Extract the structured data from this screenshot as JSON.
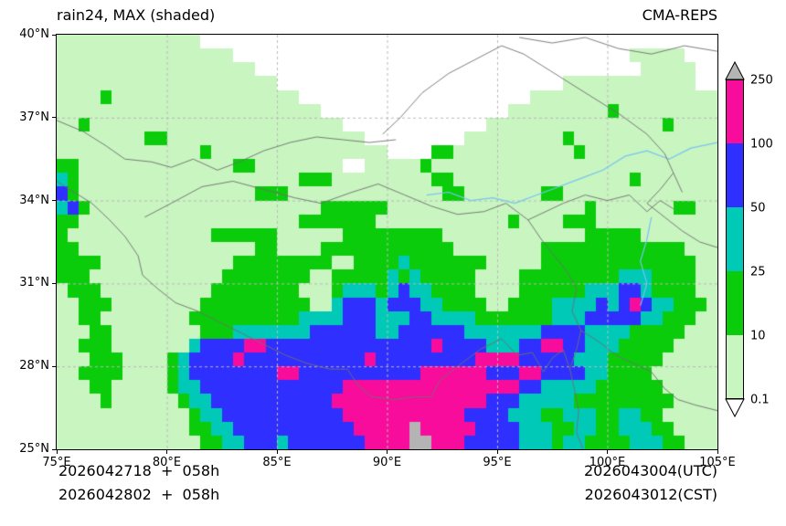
{
  "header": {
    "title": "rain24, MAX (shaded)",
    "model": "CMA-REPS"
  },
  "axes": {
    "x_tick_labels": [
      "75°E",
      "80°E",
      "85°E",
      "90°E",
      "95°E",
      "100°E",
      "105°E"
    ],
    "x_tick_values": [
      75,
      80,
      85,
      90,
      95,
      100,
      105
    ],
    "y_tick_labels": [
      "40°N",
      "37°N",
      "34°N",
      "31°N",
      "28°N",
      "25°N"
    ],
    "y_tick_values": [
      40,
      37,
      34,
      31,
      28,
      25
    ]
  },
  "colorbar": {
    "tick_labels": [
      "0.1",
      "10",
      "25",
      "50",
      "100",
      "250"
    ],
    "segment_colors": [
      "#c8f5c0",
      "#0acc0a",
      "#00c9b8",
      "#2f2fff",
      "#f80c9c"
    ],
    "over_color": "#b4b4b4",
    "under_color": "#ffffff"
  },
  "footer": {
    "init_line1": "2026042718  +  058h",
    "init_line2": "2026042802  +  058h",
    "valid_utc": "2026043004(UTC)",
    "valid_cst": "2026043012(CST)"
  },
  "chart_data": {
    "type": "heatmap",
    "title": "rain24, MAX (shaded)",
    "model": "CMA-REPS",
    "x_range": [
      75,
      105
    ],
    "y_range": [
      25,
      40
    ],
    "cell_deg": 0.5,
    "levels_mm": [
      0.1,
      10,
      25,
      50,
      100,
      250
    ],
    "palette": {
      "0": "#ffffff",
      "1": "#c8f5c0",
      "2": "#0acc0a",
      "3": "#00c9b8",
      "4": "#2f2fff",
      "5": "#f80c9c",
      "6": "#b4b4b4"
    },
    "grid_lons": [
      80,
      85,
      90,
      95,
      100
    ],
    "grid_lats": [
      28,
      31,
      34,
      37
    ],
    "grid_rows_north_to_south": [
      [
        "1111111111",
        "1110000000",
        "0000000000",
        "0000000000",
        "0000000000",
        "0000000000"
      ],
      [
        "1111111111",
        "1111110000",
        "0000000000",
        "0000000000",
        "0000000000",
        "0011111000"
      ],
      [
        "1111111111",
        "1111111100",
        "0000000000",
        "0000000000",
        "0000000000",
        "0001111100"
      ],
      [
        "1111111111",
        "1111111111",
        "0000000000",
        "0000000000",
        "0000001111",
        "1111111100"
      ],
      [
        "1111211111",
        "1111111111",
        "1100000000",
        "0000000000",
        "0001111111",
        "1111111111"
      ],
      [
        "1111111111",
        "1111111111",
        "1111000000",
        "0000000000",
        "0111111111",
        "2111111111"
      ],
      [
        "1121111111",
        "1111111111",
        "1111110000",
        "0000000001",
        "1111111111",
        "1111121111"
      ],
      [
        "1111111122",
        "1111111111",
        "1111111100",
        "0000000111",
        "1111112111",
        "1111111111"
      ],
      [
        "1111111111",
        "1112111111",
        "1111111111",
        "0000221111",
        "1111111211",
        "1111111111"
      ],
      [
        "2211111111",
        "1111112211",
        "1111110011",
        "1112111111",
        "1111111111",
        "1111111111"
      ],
      [
        "3211111111",
        "1111111111",
        "1122211111",
        "1111221111",
        "1111111111",
        "1121111111"
      ],
      [
        "4211111111",
        "1111111122",
        "2111111111",
        "1111122111",
        "1111221111",
        "1111111111"
      ],
      [
        "3421111111",
        "1111111111",
        "1111222222",
        "1111111111",
        "1111111121",
        "1111112211"
      ],
      [
        "2211111111",
        "1111111111",
        "1122222221",
        "1111111111",
        "1211112221",
        "1111111111"
      ],
      [
        "2111111111",
        "1111222222",
        "1111112222",
        "2222211111",
        "1111111122",
        "2221111111"
      ],
      [
        "2211111111",
        "1111111122",
        "1111222222",
        "2222221111",
        "1111222222",
        "2222222111"
      ],
      [
        "2222111111",
        "1111112222",
        "2222211222",
        "2322222221",
        "1111222222",
        "2222222211"
      ],
      [
        "2221111111",
        "1111122222",
        "2221122222",
        "3232222211",
        "1122222222",
        "2333222211"
      ],
      [
        "1222111111",
        "1111222222",
        "2211123332",
        "3433222211",
        "1122222233",
        "3443222211"
      ],
      [
        "1122211111",
        "1112222222",
        "2221134443",
        "4443322221",
        "1222233334",
        "3454332221"
      ],
      [
        "1122111111",
        "1122222222",
        "2233334443",
        "3344333322",
        "2222233344",
        "4443322211"
      ],
      [
        "1112211111",
        "1112223333",
        "3334444443",
        "3444444333",
        "3333444433",
        "3322222111"
      ],
      [
        "1122211111",
        "1134444554",
        "4444444444",
        "4444544443",
        "3344554433",
        "3222221111"
      ],
      [
        "1112221111",
        "2344445444",
        "4444444454",
        "4444444455",
        "5544444333",
        "2222211111"
      ],
      [
        "1122221111",
        "2344444444",
        "5544444444",
        "4445555554",
        "4455444433",
        "2222111111"
      ],
      [
        "1112211111",
        "2334444444",
        "4444445555",
        "5555555555",
        "5544333332",
        "2222211111"
      ],
      [
        "1111211111",
        "1233444444",
        "4444455555",
        "5555555554",
        "4433333222",
        "2222221111"
      ],
      [
        "1111111111",
        "1123344444",
        "4444445555",
        "5555555444",
        "4333223332",
        "2332211111"
      ],
      [
        "1111111111",
        "1122334444",
        "4444444555",
        "5565555544",
        "4433322332",
        "2333221111"
      ],
      [
        "1111111111",
        "1112233444",
        "3444444455",
        "5566555444",
        "4433323322",
        "2233322111"
      ]
    ],
    "boundaries": [
      [
        [
          75,
          36.9
        ],
        [
          76.2,
          36.5
        ],
        [
          77.2,
          36.0
        ],
        [
          78.1,
          35.5
        ],
        [
          79.3,
          35.4
        ],
        [
          80.2,
          35.2
        ],
        [
          81.2,
          35.5
        ],
        [
          82.3,
          35.1
        ],
        [
          83.3,
          35.4
        ],
        [
          84.4,
          35.8
        ],
        [
          85.6,
          36.1
        ],
        [
          86.8,
          36.3
        ],
        [
          88.0,
          36.2
        ],
        [
          89.2,
          36.1
        ],
        [
          90.4,
          36.2
        ]
      ],
      [
        [
          89.8,
          36.4
        ],
        [
          90.6,
          37.0
        ],
        [
          91.6,
          37.9
        ],
        [
          92.8,
          38.6
        ],
        [
          94.0,
          39.1
        ],
        [
          95.2,
          39.6
        ],
        [
          96.2,
          39.3
        ],
        [
          97.0,
          38.9
        ],
        [
          98.2,
          38.3
        ],
        [
          99.4,
          37.7
        ],
        [
          100.6,
          37.1
        ],
        [
          101.8,
          36.4
        ],
        [
          102.6,
          35.7
        ],
        [
          103.0,
          35.0
        ],
        [
          103.4,
          34.3
        ]
      ],
      [
        [
          96.0,
          39.9
        ],
        [
          97.5,
          39.7
        ],
        [
          99.0,
          39.9
        ],
        [
          100.5,
          39.5
        ],
        [
          102.0,
          39.3
        ],
        [
          103.5,
          39.6
        ],
        [
          105,
          39.4
        ]
      ],
      [
        [
          79.0,
          33.4
        ],
        [
          80.2,
          33.9
        ],
        [
          81.6,
          34.5
        ],
        [
          83.0,
          34.7
        ],
        [
          84.4,
          34.4
        ],
        [
          85.8,
          34.1
        ],
        [
          87.0,
          33.9
        ],
        [
          88.4,
          34.3
        ],
        [
          89.6,
          34.6
        ],
        [
          90.8,
          34.2
        ],
        [
          92.0,
          33.8
        ],
        [
          93.2,
          33.5
        ],
        [
          94.4,
          33.6
        ],
        [
          95.4,
          33.9
        ],
        [
          96.4,
          33.3
        ],
        [
          97.2,
          33.6
        ],
        [
          98.0,
          33.9
        ],
        [
          99.0,
          34.2
        ],
        [
          100.0,
          34.0
        ],
        [
          101.0,
          34.2
        ],
        [
          101.8,
          33.6
        ],
        [
          102.4,
          34.0
        ],
        [
          103.0,
          33.7
        ]
      ],
      [
        [
          75,
          34.7
        ],
        [
          75.8,
          34.3
        ],
        [
          76.6,
          33.9
        ],
        [
          77.4,
          33.3
        ],
        [
          78.1,
          32.7
        ],
        [
          78.7,
          32.0
        ],
        [
          78.9,
          31.3
        ],
        [
          79.6,
          30.8
        ],
        [
          80.4,
          30.3
        ],
        [
          81.4,
          30.0
        ],
        [
          82.4,
          29.6
        ],
        [
          83.4,
          29.2
        ],
        [
          84.4,
          28.8
        ],
        [
          85.4,
          28.4
        ],
        [
          86.4,
          28.1
        ],
        [
          87.4,
          27.9
        ],
        [
          88.2,
          27.9
        ],
        [
          88.7,
          27.3
        ],
        [
          89.3,
          26.9
        ],
        [
          90.3,
          26.8
        ],
        [
          91.3,
          26.9
        ],
        [
          92.0,
          26.9
        ],
        [
          92.4,
          27.5
        ],
        [
          93.2,
          28.0
        ],
        [
          94.2,
          28.6
        ],
        [
          95.2,
          29.0
        ],
        [
          95.9,
          28.4
        ],
        [
          96.6,
          28.5
        ],
        [
          97.1,
          27.8
        ],
        [
          97.5,
          28.3
        ],
        [
          98.0,
          28.6
        ],
        [
          98.3,
          27.9
        ],
        [
          98.5,
          27.2
        ],
        [
          98.7,
          26.4
        ],
        [
          98.6,
          25.6
        ],
        [
          98.9,
          25.0
        ]
      ],
      [
        [
          96.4,
          33.3
        ],
        [
          97.0,
          32.6
        ],
        [
          97.6,
          32.0
        ],
        [
          98.2,
          31.4
        ],
        [
          98.6,
          30.8
        ],
        [
          98.4,
          30.0
        ],
        [
          98.8,
          29.3
        ],
        [
          98.6,
          28.6
        ],
        [
          98.3,
          27.9
        ]
      ],
      [
        [
          103.0,
          35.0
        ],
        [
          102.4,
          34.4
        ],
        [
          101.8,
          33.9
        ],
        [
          102.6,
          33.4
        ],
        [
          103.4,
          32.9
        ],
        [
          104.2,
          32.5
        ],
        [
          105,
          32.3
        ]
      ],
      [
        [
          98.8,
          29.3
        ],
        [
          99.6,
          28.9
        ],
        [
          100.4,
          28.4
        ],
        [
          101.2,
          28.1
        ],
        [
          102.0,
          27.8
        ],
        [
          102.6,
          27.2
        ],
        [
          103.2,
          26.8
        ],
        [
          104.0,
          26.6
        ],
        [
          105,
          26.4
        ]
      ]
    ],
    "rivers": [
      [
        [
          105,
          36.1
        ],
        [
          103.8,
          35.9
        ],
        [
          102.8,
          35.5
        ],
        [
          101.8,
          35.8
        ],
        [
          100.8,
          35.6
        ],
        [
          99.8,
          35.1
        ],
        [
          98.8,
          34.8
        ],
        [
          97.8,
          34.5
        ],
        [
          96.8,
          34.2
        ],
        [
          95.8,
          33.9
        ],
        [
          94.8,
          34.1
        ],
        [
          93.8,
          34.0
        ],
        [
          92.8,
          34.3
        ],
        [
          91.8,
          34.2
        ]
      ],
      [
        [
          102.0,
          33.4
        ],
        [
          101.8,
          32.6
        ],
        [
          101.5,
          31.8
        ],
        [
          101.8,
          31.0
        ],
        [
          101.5,
          30.2
        ]
      ]
    ]
  }
}
